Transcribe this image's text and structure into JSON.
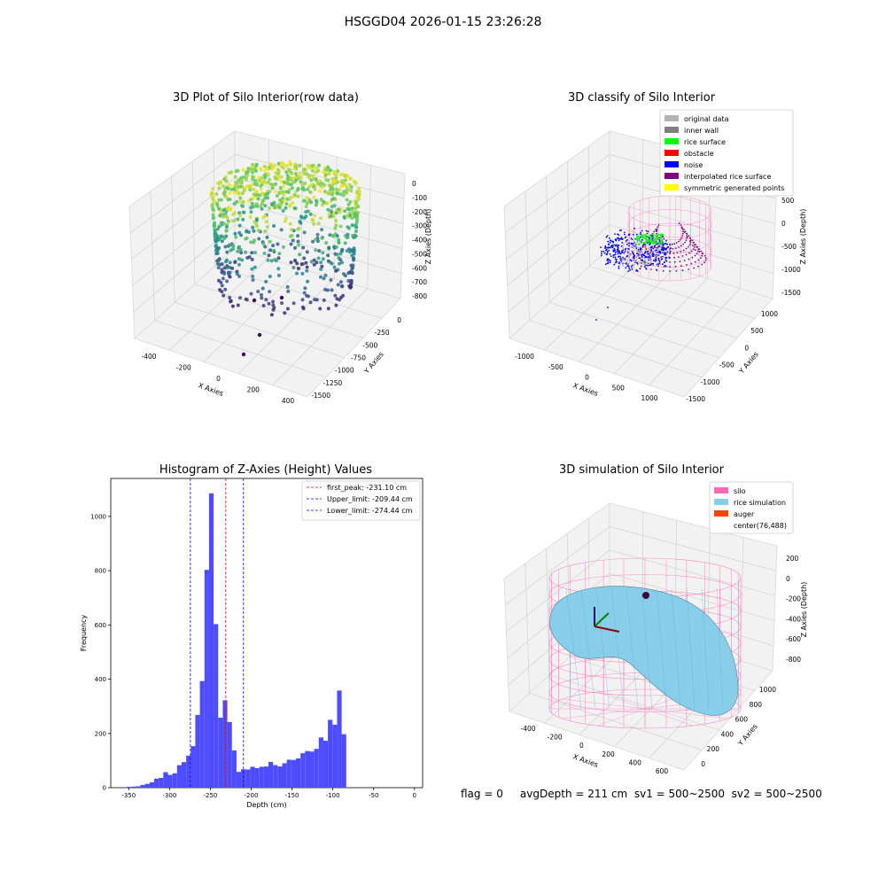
{
  "suptitle": "HSGGD04 2026-01-15 23:26:28",
  "footer": "flag = 0     avgDepth = 211 cm  sv1 = 500~2500  sv2 = 500~2500",
  "chart_data": [
    {
      "type": "scatter",
      "title": "3D Plot of Silo Interior(row data)",
      "xlabel": "X Axies",
      "ylabel": "Y Axies",
      "zlabel": "Z Axies (Depth)",
      "x_ticks": [
        "-400",
        "-200",
        "0",
        "200",
        "400"
      ],
      "y_ticks": [
        "0",
        "-250",
        "-500",
        "-750",
        "-1000",
        "-1250",
        "-1500"
      ],
      "z_ticks": [
        "0",
        "-100",
        "-200",
        "-300",
        "-400",
        "-500",
        "-600",
        "-700",
        "-800"
      ],
      "colormap": [
        "#440154",
        "#3b528b",
        "#21918c",
        "#5ec962",
        "#fde725"
      ],
      "grid": true
    },
    {
      "type": "scatter",
      "title": "3D classify of Silo Interior",
      "xlabel": "X Axies",
      "ylabel": "Y Axies",
      "zlabel": "Z Axies (Depth)",
      "x_ticks": [
        "-1000",
        "-500",
        "0",
        "500",
        "1000"
      ],
      "y_ticks": [
        "1000",
        "500",
        "0",
        "-500",
        "-1000",
        "-1500"
      ],
      "z_ticks": [
        "500",
        "0",
        "-500",
        "-1000",
        "-1500"
      ],
      "legend_position": "top-right",
      "legend": [
        {
          "label": "original data",
          "color": "#b3b3b3"
        },
        {
          "label": "inner wall",
          "color": "#808080"
        },
        {
          "label": "rice surface",
          "color": "#00ff00"
        },
        {
          "label": "obstacle",
          "color": "#ff0000"
        },
        {
          "label": "noise",
          "color": "#0000ff"
        },
        {
          "label": "interpolated rice surface",
          "color": "#800080"
        },
        {
          "label": "symmetric generated points",
          "color": "#ffff00"
        }
      ],
      "grid": true
    },
    {
      "type": "bar",
      "title": "Histogram of Z-Axies (Height) Values",
      "xlabel": "Depth (cm)",
      "ylabel": "Frequency",
      "bar_color": "#4d4dff",
      "x_ticks": [
        -350,
        -300,
        -250,
        -200,
        -150,
        -100,
        -50,
        0
      ],
      "y_ticks": [
        0,
        200,
        400,
        600,
        800,
        1000
      ],
      "xlim": [
        -372,
        10
      ],
      "ylim": [
        0,
        1140
      ],
      "bin_width": 5.6,
      "bins": [
        {
          "x": -358,
          "y": 2
        },
        {
          "x": -352.4,
          "y": 3
        },
        {
          "x": -346.8,
          "y": 4
        },
        {
          "x": -341.2,
          "y": 5
        },
        {
          "x": -335.6,
          "y": 10
        },
        {
          "x": -330,
          "y": 14
        },
        {
          "x": -324.4,
          "y": 20
        },
        {
          "x": -318.8,
          "y": 33
        },
        {
          "x": -313.2,
          "y": 36
        },
        {
          "x": -307.6,
          "y": 57
        },
        {
          "x": -302,
          "y": 47
        },
        {
          "x": -296.4,
          "y": 53
        },
        {
          "x": -290.8,
          "y": 83
        },
        {
          "x": -285.2,
          "y": 94
        },
        {
          "x": -279.6,
          "y": 118
        },
        {
          "x": -274,
          "y": 153
        },
        {
          "x": -268.4,
          "y": 268
        },
        {
          "x": -262.8,
          "y": 393
        },
        {
          "x": -257.2,
          "y": 803
        },
        {
          "x": -251.6,
          "y": 1085
        },
        {
          "x": -246,
          "y": 603
        },
        {
          "x": -240.4,
          "y": 258
        },
        {
          "x": -234.8,
          "y": 322
        },
        {
          "x": -229.2,
          "y": 242
        },
        {
          "x": -223.6,
          "y": 137
        },
        {
          "x": -218,
          "y": 58
        },
        {
          "x": -212.4,
          "y": 68
        },
        {
          "x": -206.8,
          "y": 67
        },
        {
          "x": -201.2,
          "y": 77
        },
        {
          "x": -195.6,
          "y": 72
        },
        {
          "x": -190,
          "y": 77
        },
        {
          "x": -184.4,
          "y": 78
        },
        {
          "x": -178.8,
          "y": 95
        },
        {
          "x": -173.2,
          "y": 83
        },
        {
          "x": -167.6,
          "y": 78
        },
        {
          "x": -162,
          "y": 90
        },
        {
          "x": -156.4,
          "y": 103
        },
        {
          "x": -150.8,
          "y": 102
        },
        {
          "x": -145.2,
          "y": 108
        },
        {
          "x": -139.6,
          "y": 127
        },
        {
          "x": -134,
          "y": 135
        },
        {
          "x": -128.4,
          "y": 133
        },
        {
          "x": -122.8,
          "y": 143
        },
        {
          "x": -117.2,
          "y": 185
        },
        {
          "x": -111.6,
          "y": 173
        },
        {
          "x": -106,
          "y": 250
        },
        {
          "x": -100.4,
          "y": 232
        },
        {
          "x": -94.8,
          "y": 358
        },
        {
          "x": -89.2,
          "y": 197
        },
        {
          "x": -83.6,
          "y": 2
        }
      ],
      "vlines": [
        {
          "label": "first_peak: -231.10 cm",
          "x": -231.1,
          "color": "#ff0000"
        },
        {
          "label": "Upper_limit: -209.44 cm",
          "x": -209.44,
          "color": "#0000ff"
        },
        {
          "label": "Lower_limit: -274.44 cm",
          "x": -274.44,
          "color": "#0000ff"
        }
      ],
      "legend_position": "top-right"
    },
    {
      "type": "surface",
      "title": "3D simulation of Silo Interior",
      "xlabel": "X Axies",
      "ylabel": "Y Axies",
      "zlabel": "Z Axies (Depth)",
      "x_ticks": [
        "-400",
        "-200",
        "0",
        "200",
        "400",
        "600"
      ],
      "y_ticks": [
        "1000",
        "800",
        "600",
        "400",
        "200",
        "0"
      ],
      "z_ticks": [
        "200",
        "0",
        "-200",
        "-400",
        "-600",
        "-800"
      ],
      "legend_position": "top-right",
      "legend": [
        {
          "label": "silo",
          "color": "#ff69b4"
        },
        {
          "label": "rice simulation",
          "color": "#87ceeb"
        },
        {
          "label": "auger",
          "color": "#ff4500"
        },
        {
          "label": "center(76,488)",
          "color": ""
        }
      ],
      "grid": true
    }
  ]
}
